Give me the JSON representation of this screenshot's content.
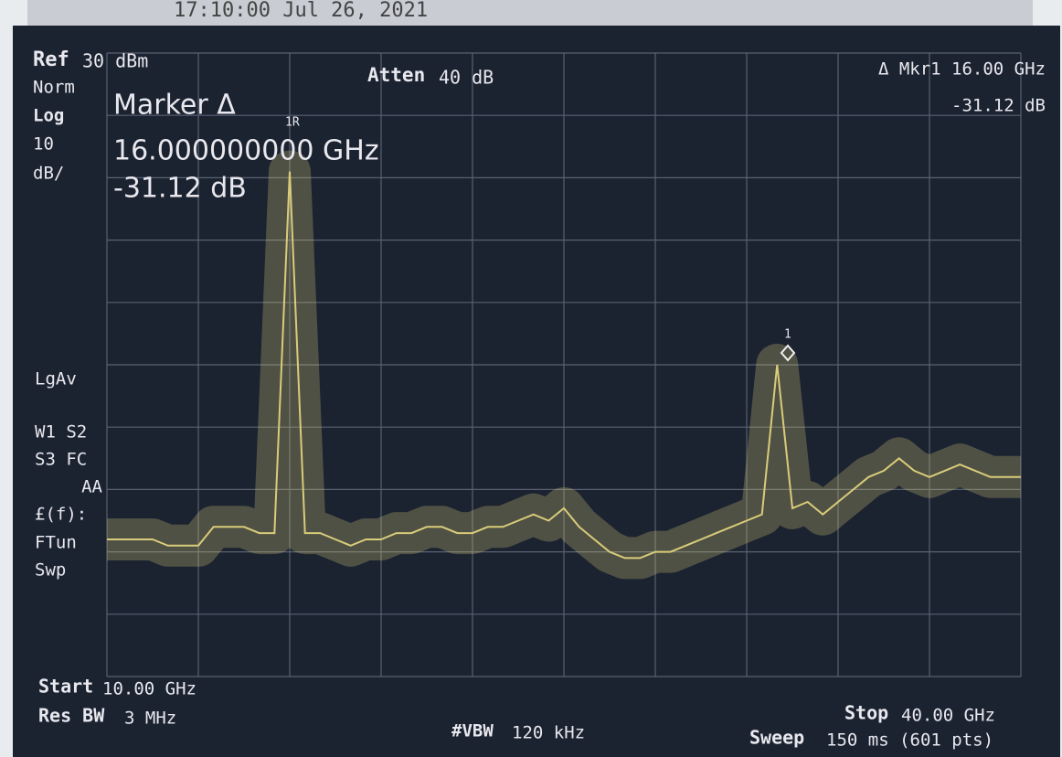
{
  "header": {
    "timestamp": "17:10:00 Jul 26, 2021"
  },
  "screen": {
    "ref_label": "Ref",
    "ref_value": "30 dBm",
    "norm": "Norm",
    "log": "Log",
    "scale_value": "10",
    "scale_unit": "dB/",
    "atten_label": "Atten",
    "atten_value": "40 dB",
    "mkr_readout": "Δ Mkr1  16.00 GHz",
    "mkr_delta": "-31.12 dB",
    "marker_title": "Marker Δ",
    "marker_freq": "16.000000000 GHz",
    "marker_delta": "-31.12 dB",
    "ref_marker_label": "1R",
    "marker_label": "1",
    "side": [
      "LgAv",
      "W1  S2",
      "S3  FC",
      "AA",
      "£(f):",
      "FTun",
      "Swp"
    ],
    "start_label": "Start",
    "start_value": "10.00 GHz",
    "rbw_label": "Res BW",
    "rbw_value": "3 MHz",
    "vbw_label": "#VBW",
    "vbw_value": "120 kHz",
    "stop_label": "Stop",
    "stop_value": "40.00 GHz",
    "sweep_label": "Sweep",
    "sweep_value": "150 ms (601 pts)"
  },
  "chart_data": {
    "type": "line",
    "color": "#d9cc7a",
    "grid": true,
    "xlim": [
      10,
      40
    ],
    "ylim": [
      -70,
      30
    ],
    "xticks": [
      10,
      13,
      16,
      19,
      22,
      25,
      28,
      31,
      34,
      37,
      40
    ],
    "yticks": [
      30,
      20,
      10,
      0,
      -10,
      -20,
      -30,
      -40,
      -50,
      -60,
      -70
    ],
    "x": [
      10,
      10.5,
      11,
      11.5,
      12,
      12.5,
      13,
      13.5,
      14,
      14.5,
      15,
      15.5,
      16,
      16.5,
      17,
      17.5,
      18,
      18.5,
      19,
      19.5,
      20,
      20.5,
      21,
      21.5,
      22,
      22.5,
      23,
      23.5,
      24,
      24.5,
      25,
      25.5,
      26,
      26.5,
      27,
      27.5,
      28,
      28.5,
      29,
      29.5,
      30,
      30.5,
      31,
      31.5,
      32,
      32.5,
      33,
      33.5,
      34,
      34.5,
      35,
      35.5,
      36,
      36.5,
      37,
      37.5,
      38,
      38.5,
      39,
      39.5,
      40
    ],
    "values": [
      -48,
      -48,
      -48,
      -48,
      -49,
      -49,
      -49,
      -46,
      -46,
      -46,
      -47,
      -47,
      11,
      -47,
      -47,
      -48,
      -49,
      -48,
      -48,
      -47,
      -47,
      -46,
      -46,
      -47,
      -47,
      -46,
      -46,
      -45,
      -44,
      -45,
      -43,
      -46,
      -48,
      -50,
      -51,
      -51,
      -50,
      -50,
      -49,
      -48,
      -47,
      -46,
      -45,
      -44,
      -20,
      -43,
      -42,
      -44,
      -42,
      -40,
      -38,
      -37,
      -35,
      -37,
      -38,
      -37,
      -36,
      -37,
      -38,
      -38,
      -38
    ]
  }
}
